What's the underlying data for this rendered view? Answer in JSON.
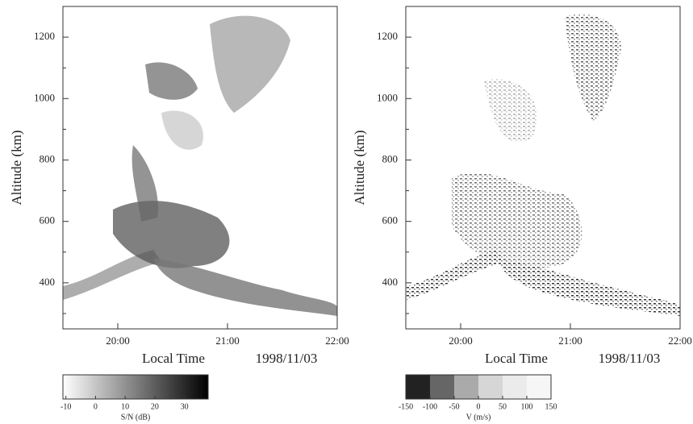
{
  "chart_data": [
    {
      "type": "heatmap",
      "ylabel": "Altitude (km)",
      "xlabel": "Local Time",
      "date": "1998/11/03",
      "xlim": [
        19.5,
        22
      ],
      "xticks": [
        {
          "value": 20,
          "label": "20:00"
        },
        {
          "value": 21,
          "label": "21:00"
        },
        {
          "value": 22,
          "label": "22:00"
        }
      ],
      "ylim": [
        250,
        1300
      ],
      "yticks": [
        400,
        600,
        800,
        1000,
        1200
      ],
      "yminor": [
        300,
        500,
        700,
        900,
        1100
      ],
      "colorbar": {
        "label": "S/N  (dB)",
        "lim": [
          -11,
          38
        ],
        "ticks": [
          -10,
          0,
          10,
          20,
          30
        ],
        "gradient": true,
        "colors": [
          "#ffffff",
          "#000000"
        ]
      }
    },
    {
      "type": "heatmap",
      "ylabel": "Altitude (km)",
      "xlabel": "Local Time",
      "date": "1998/11/03",
      "xlim": [
        19.5,
        22
      ],
      "xticks": [
        {
          "value": 20,
          "label": "20:00"
        },
        {
          "value": 21,
          "label": "21:00"
        },
        {
          "value": 22,
          "label": "22:00"
        }
      ],
      "ylim": [
        250,
        1300
      ],
      "yticks": [
        400,
        600,
        800,
        1000,
        1200
      ],
      "yminor": [
        300,
        500,
        700,
        900,
        1100
      ],
      "colorbar": {
        "label": "V (m/s)",
        "lim": [
          -150,
          150
        ],
        "ticks": [
          -150,
          -100,
          -50,
          0,
          50,
          100,
          150
        ],
        "gradient": false,
        "colors": [
          "#222222",
          "#666666",
          "#aaaaaa",
          "#d6d6d6",
          "#ebebeb",
          "#f6f6f6"
        ]
      }
    }
  ]
}
